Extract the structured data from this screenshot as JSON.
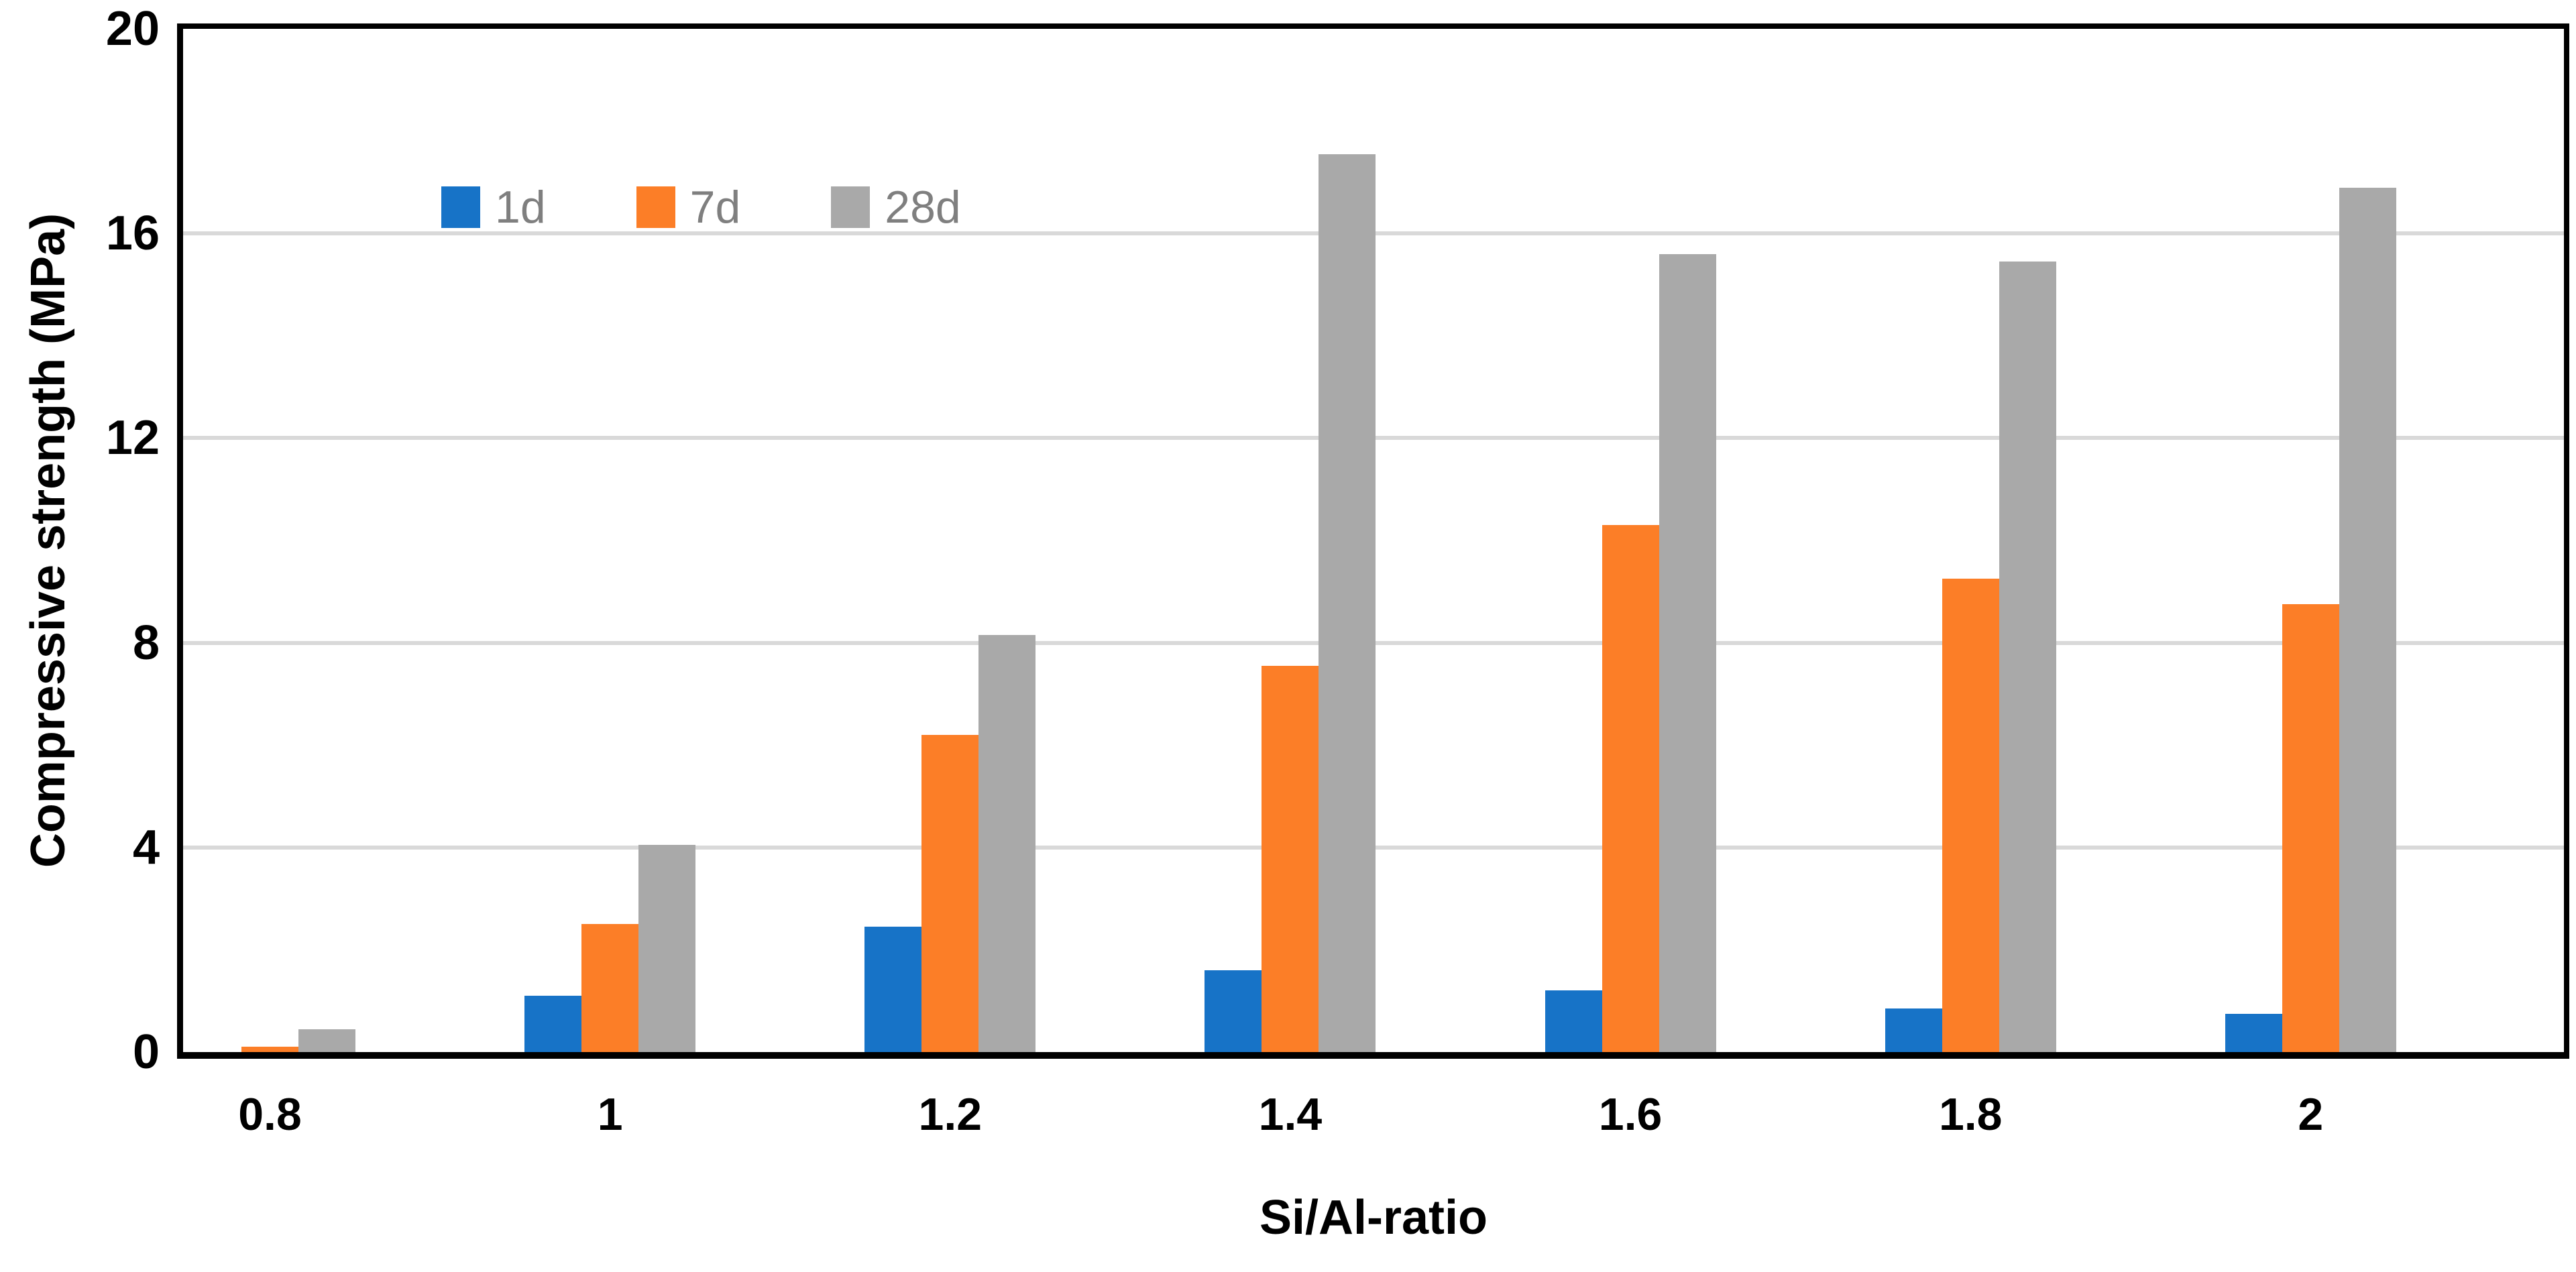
{
  "chart_data": {
    "type": "bar",
    "categories": [
      "0.8",
      "1",
      "1.2",
      "1.4",
      "1.6",
      "1.8",
      "2"
    ],
    "series": [
      {
        "name": "1d",
        "color": "#1773C7",
        "values": [
          0,
          1.1,
          2.45,
          1.6,
          1.2,
          0.85,
          0.75
        ]
      },
      {
        "name": "7d",
        "color": "#FC7E27",
        "values": [
          0.1,
          2.5,
          6.2,
          7.55,
          10.3,
          9.25,
          8.75
        ]
      },
      {
        "name": "28d",
        "color": "#A9A9A9",
        "values": [
          0.45,
          4.05,
          8.15,
          17.55,
          15.6,
          15.45,
          16.9
        ]
      }
    ],
    "title": "",
    "xlabel": "Si/Al-ratio",
    "ylabel": "Compressive strength (MPa)",
    "ylim": [
      0,
      20
    ],
    "y_ticks": [
      0,
      4,
      8,
      12,
      16,
      20
    ],
    "grid": true,
    "legend_position": "top-left-inside",
    "colors": {
      "gridline": "#D9D9D9",
      "axis": "#000000",
      "tick_label": "#000000",
      "legend_text": "#7F7F7F",
      "background": "#FFFFFF"
    }
  }
}
